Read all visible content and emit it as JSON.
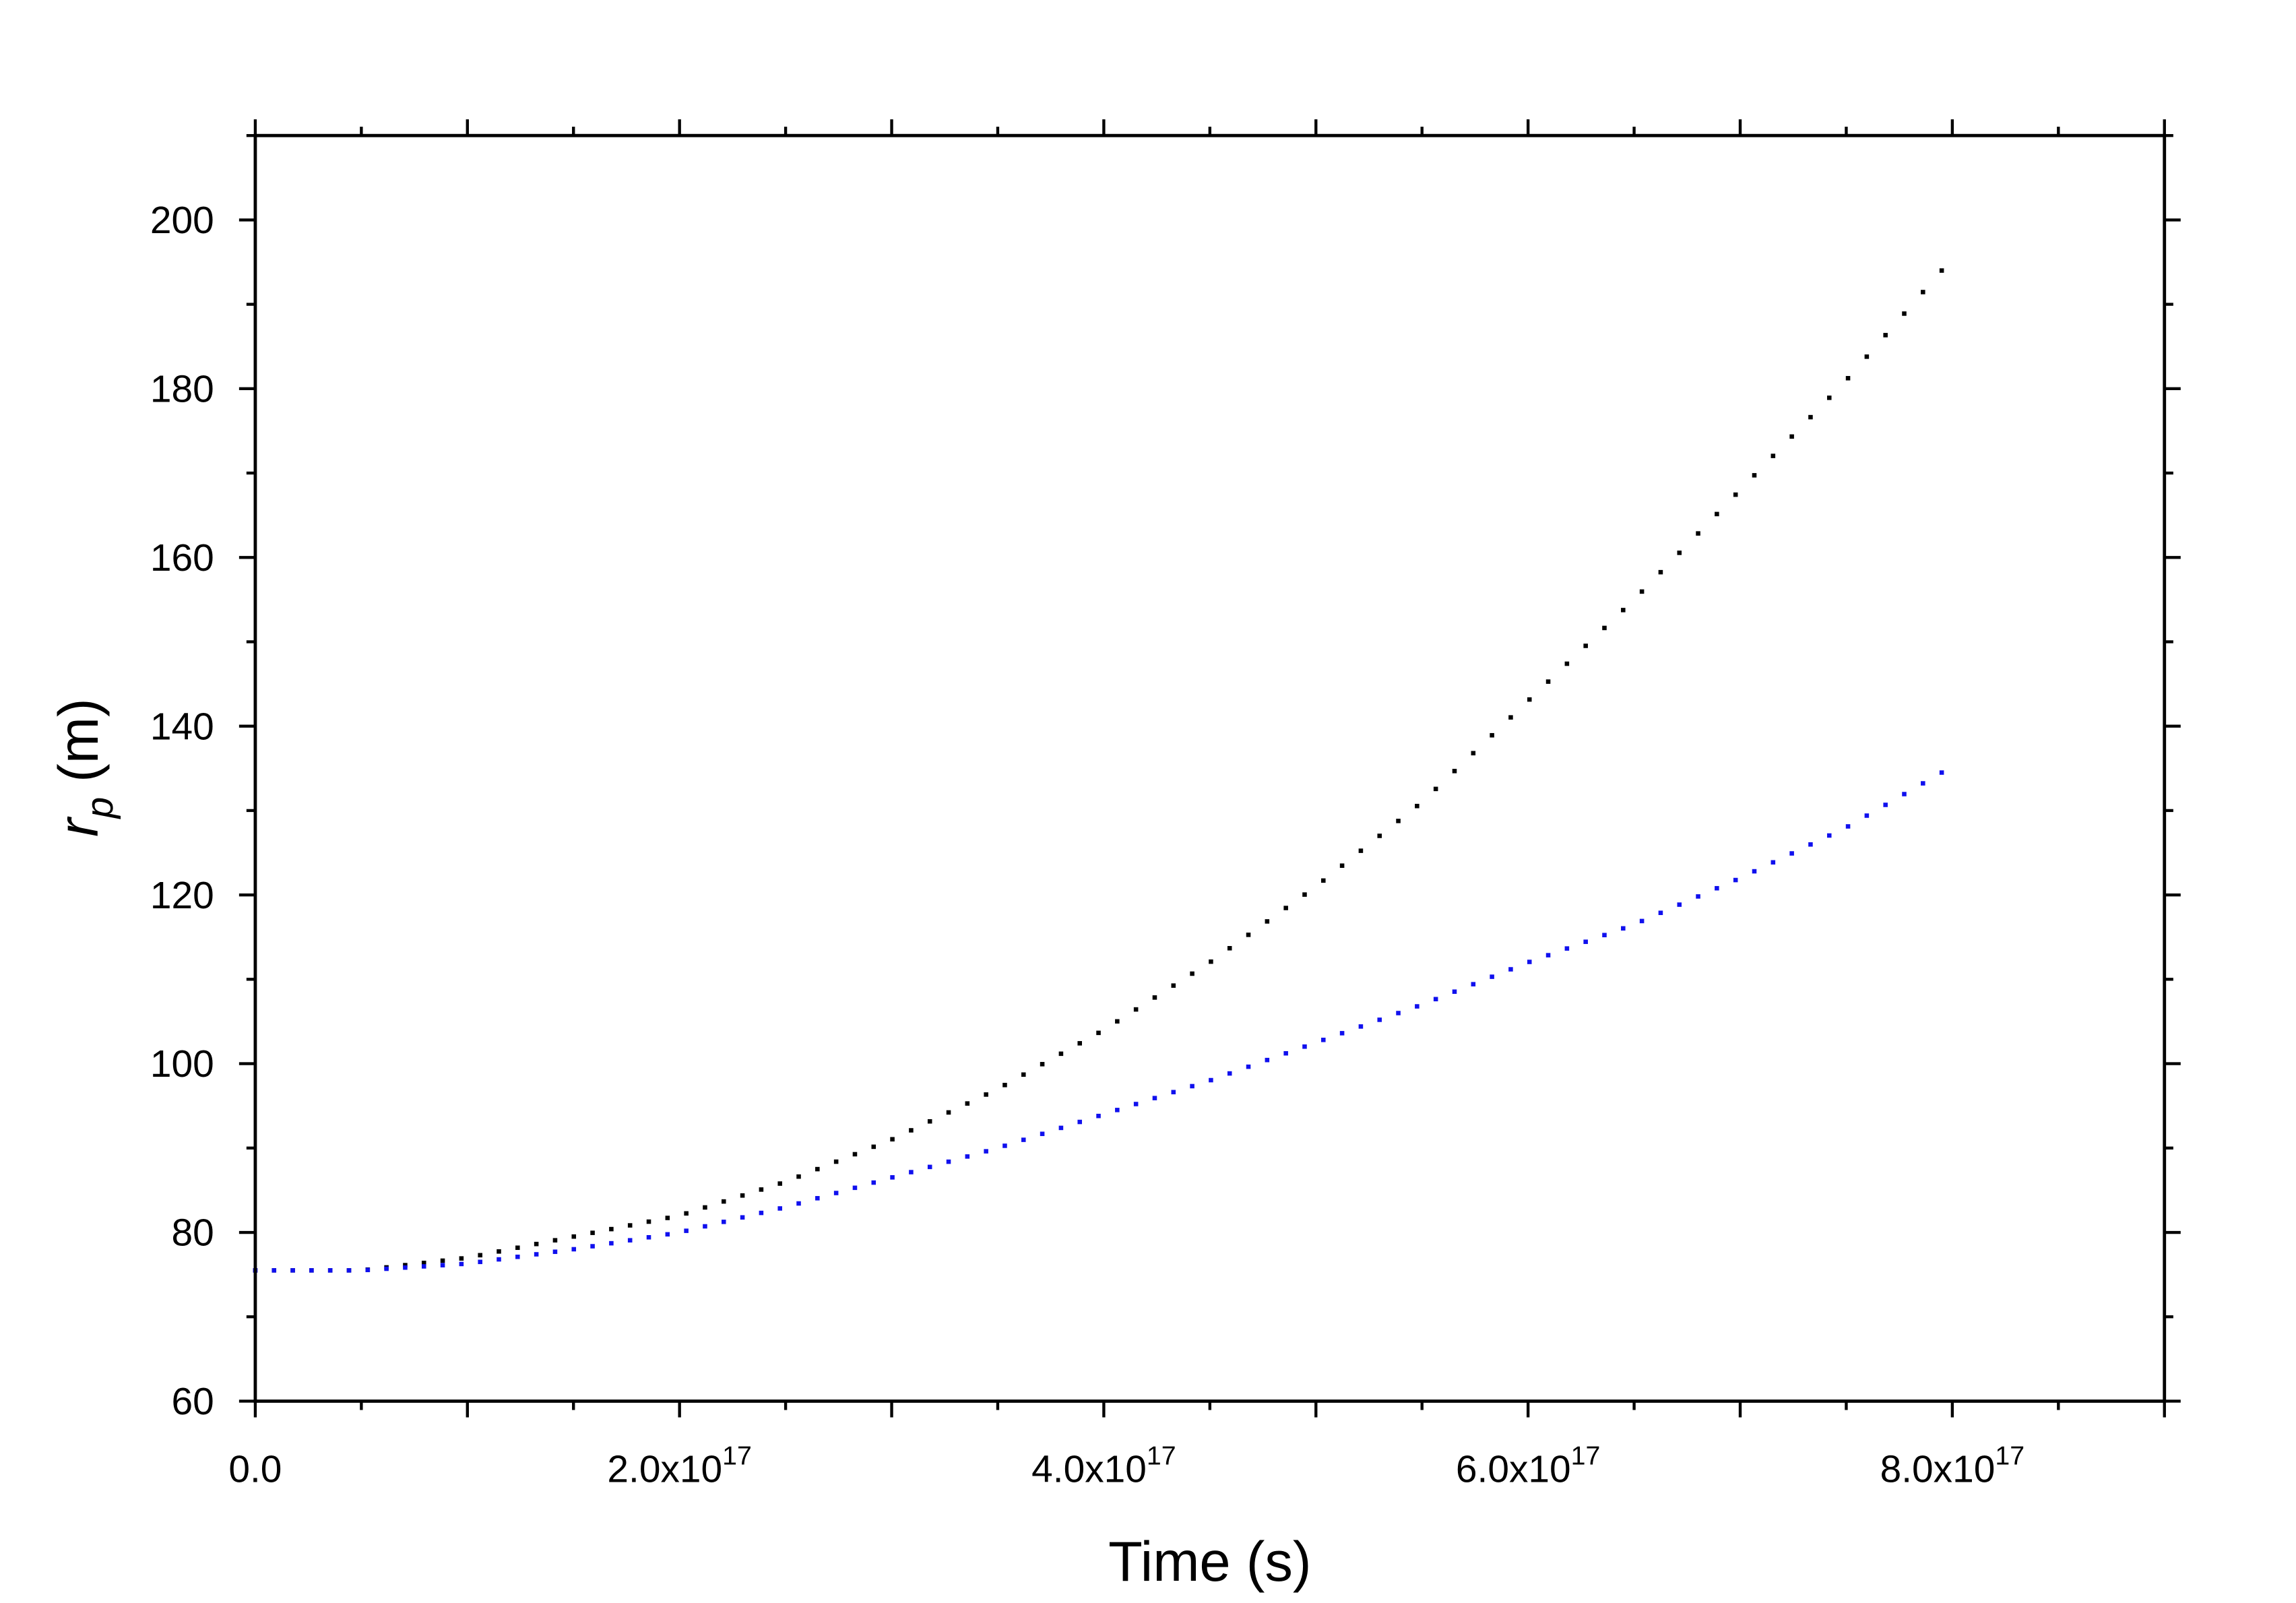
{
  "chart_data": {
    "type": "scatter",
    "title": "",
    "xlabel": "Time (s)",
    "ylabel": {
      "symbol": "r",
      "subscript": "p",
      "unit": "(m)"
    },
    "xlim": [
      0,
      9e+17
    ],
    "ylim": [
      60,
      210
    ],
    "x_tick_labels": [
      {
        "value": 0,
        "mantissa": "0.0",
        "exponent": ""
      },
      {
        "value": 2e+17,
        "mantissa": "2.0x10",
        "exponent": "17"
      },
      {
        "value": 4e+17,
        "mantissa": "4.0x10",
        "exponent": "17"
      },
      {
        "value": 6e+17,
        "mantissa": "6.0x10",
        "exponent": "17"
      },
      {
        "value": 8e+17,
        "mantissa": "8.0x10",
        "exponent": "17"
      }
    ],
    "y_tick_labels": [
      "60",
      "80",
      "100",
      "120",
      "140",
      "160",
      "180",
      "200"
    ],
    "grid": false,
    "legend": "none",
    "series": [
      {
        "color": "#000000",
        "x": [
          0,
          5e+16,
          1e+17,
          1.5e+17,
          2e+17,
          2.5e+17,
          3e+17,
          3.5e+17,
          4e+17,
          4.5e+17,
          5e+17,
          5.5e+17,
          6e+17,
          6.5e+17,
          7e+17,
          7.5e+17,
          7.95e+17
        ],
        "y": [
          75.5,
          75.5,
          77,
          79.5,
          82,
          86,
          91,
          97,
          104,
          112,
          121,
          131,
          143,
          155,
          168,
          181,
          194
        ]
      },
      {
        "color": "#1010ee",
        "x": [
          0,
          5e+16,
          1e+17,
          1.5e+17,
          2e+17,
          2.5e+17,
          3e+17,
          3.5e+17,
          4e+17,
          4.5e+17,
          5e+17,
          5.5e+17,
          6e+17,
          6.5e+17,
          7e+17,
          7.5e+17,
          7.95e+17
        ],
        "y": [
          75.5,
          75.5,
          76.3,
          78,
          80,
          83,
          86.5,
          90,
          94,
          98,
          102.5,
          107,
          112,
          116.5,
          122,
          128,
          134.5
        ]
      }
    ]
  }
}
